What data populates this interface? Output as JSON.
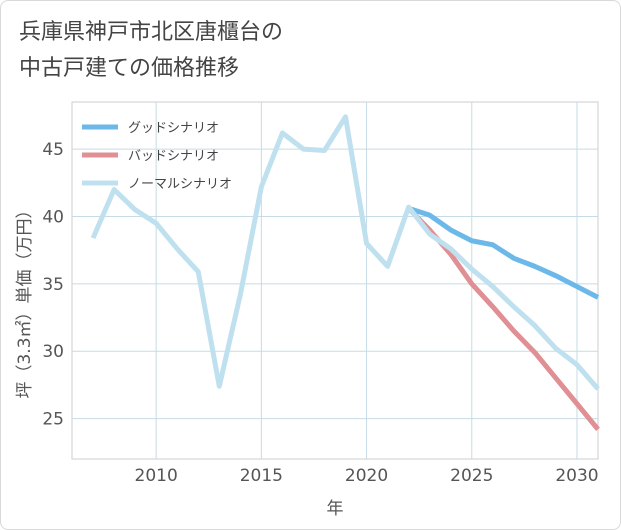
{
  "chart_data": {
    "type": "line",
    "title": "兵庫県神戸市北区唐櫃台の中古戸建ての価格推移",
    "title_lines": [
      "兵庫県神戸市北区唐櫃台の",
      "中古戸建ての価格推移"
    ],
    "xlabel": "年",
    "ylabel": "坪（3.3㎡）単価（万円）",
    "xlim": [
      2006.0,
      2031.0
    ],
    "ylim": [
      22.0,
      48.5
    ],
    "xticks": [
      2010,
      2015,
      2020,
      2025,
      2030
    ],
    "yticks": [
      25,
      30,
      35,
      40,
      45
    ],
    "grid": true,
    "legend_position": "top-left",
    "series": [
      {
        "name": "グッドシナリオ",
        "color": "#6cb8e8",
        "x": [
          2022,
          2023,
          2024,
          2025,
          2026,
          2027,
          2028,
          2029,
          2030,
          2031
        ],
        "y": [
          40.6,
          40.1,
          39.0,
          38.2,
          37.9,
          36.9,
          36.3,
          35.6,
          34.8,
          34.0
        ]
      },
      {
        "name": "バッドシナリオ",
        "color": "#e08f94",
        "x": [
          2022,
          2023,
          2024,
          2025,
          2026,
          2027,
          2028,
          2029,
          2030,
          2031
        ],
        "y": [
          40.6,
          39.0,
          37.2,
          35.0,
          33.3,
          31.5,
          29.9,
          28.0,
          26.1,
          24.2
        ]
      },
      {
        "name": "ノーマルシナリオ",
        "color": "#bfe0ee",
        "x": [
          2007,
          2008,
          2009,
          2010,
          2011,
          2012,
          2013,
          2014,
          2015,
          2016,
          2017,
          2018,
          2019,
          2020,
          2021,
          2022,
          2023,
          2024,
          2025,
          2026,
          2027,
          2028,
          2029,
          2030,
          2031
        ],
        "y": [
          38.4,
          42.0,
          40.5,
          39.5,
          37.6,
          35.9,
          27.4,
          34.2,
          42.2,
          46.2,
          45.0,
          44.9,
          47.4,
          38.0,
          36.3,
          40.7,
          38.7,
          37.6,
          36.1,
          34.8,
          33.3,
          31.9,
          30.2,
          29.0,
          27.2
        ]
      }
    ]
  }
}
